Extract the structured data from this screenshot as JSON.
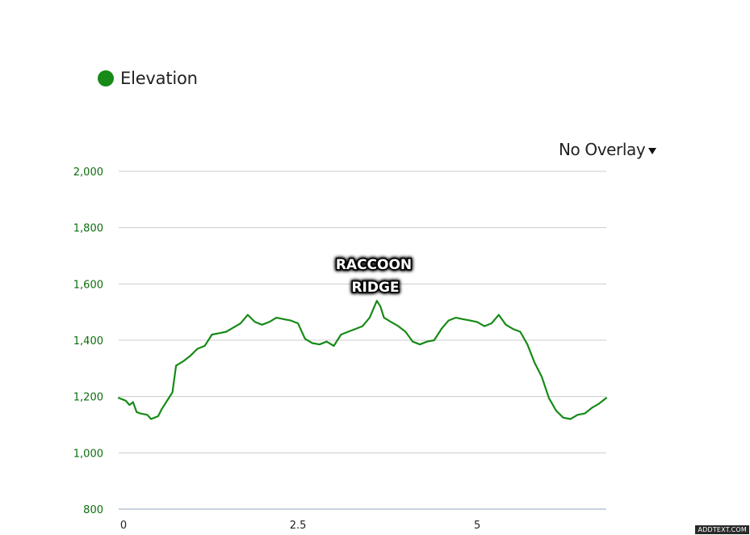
{
  "legend": {
    "label": "Elevation",
    "color": "#178a17"
  },
  "overlay_select": {
    "label": "No Overlay",
    "caret_icon": "caret-down-icon"
  },
  "annotation": {
    "line1": "RACCOON",
    "line2": "RIDGE"
  },
  "watermark": "ADDTEXT.COM",
  "colors": {
    "series": "#178a17",
    "axis_text_y": "#0e6e0e",
    "axis_text_x": "#222222",
    "grid": "#cccccc",
    "x_axis_line": "#a9b9c9"
  },
  "chart_data": {
    "type": "line",
    "title": "",
    "xlabel": "",
    "ylabel": "",
    "xlim": [
      0,
      6.8
    ],
    "ylim": [
      800,
      2000
    ],
    "grid": true,
    "legend": "top-left",
    "x_ticks": [
      0,
      2.5,
      5
    ],
    "x_tick_labels": [
      "0",
      "2.5",
      "5"
    ],
    "y_ticks": [
      800,
      1000,
      1200,
      1400,
      1600,
      1800,
      2000
    ],
    "y_tick_labels": [
      "800",
      "1,000",
      "1,200",
      "1,400",
      "1,600",
      "1,800",
      "2,000"
    ],
    "series": [
      {
        "name": "Elevation",
        "x": [
          0,
          0.1,
          0.15,
          0.2,
          0.25,
          0.3,
          0.4,
          0.45,
          0.5,
          0.55,
          0.6,
          0.7,
          0.75,
          0.8,
          0.9,
          1.0,
          1.1,
          1.2,
          1.3,
          1.4,
          1.5,
          1.6,
          1.7,
          1.8,
          1.9,
          2.0,
          2.1,
          2.2,
          2.3,
          2.4,
          2.5,
          2.6,
          2.7,
          2.8,
          2.9,
          3.0,
          3.1,
          3.2,
          3.3,
          3.4,
          3.5,
          3.55,
          3.6,
          3.65,
          3.7,
          3.8,
          3.9,
          4.0,
          4.1,
          4.2,
          4.3,
          4.4,
          4.5,
          4.6,
          4.7,
          4.8,
          4.9,
          5.0,
          5.1,
          5.2,
          5.3,
          5.4,
          5.5,
          5.6,
          5.7,
          5.8,
          5.9,
          6.0,
          6.1,
          6.2,
          6.3,
          6.4,
          6.5,
          6.6,
          6.7,
          6.8
        ],
        "values": [
          1195,
          1185,
          1170,
          1180,
          1145,
          1140,
          1135,
          1120,
          1125,
          1130,
          1155,
          1195,
          1215,
          1310,
          1325,
          1345,
          1370,
          1380,
          1420,
          1425,
          1430,
          1445,
          1460,
          1490,
          1465,
          1455,
          1465,
          1480,
          1475,
          1470,
          1460,
          1405,
          1390,
          1385,
          1395,
          1380,
          1420,
          1430,
          1440,
          1450,
          1480,
          1510,
          1540,
          1520,
          1480,
          1465,
          1450,
          1430,
          1395,
          1385,
          1395,
          1400,
          1440,
          1470,
          1480,
          1475,
          1470,
          1465,
          1450,
          1460,
          1490,
          1455,
          1440,
          1430,
          1385,
          1320,
          1270,
          1195,
          1150,
          1125,
          1120,
          1135,
          1140,
          1160,
          1175,
          1195
        ]
      }
    ]
  }
}
